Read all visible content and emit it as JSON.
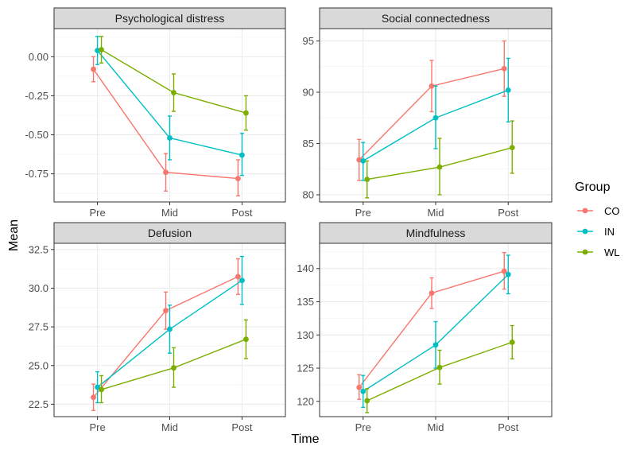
{
  "chart_data": {
    "type": "line",
    "title": "",
    "xlabel": "Time",
    "ylabel": "Mean",
    "categories": [
      "Pre",
      "Mid",
      "Post"
    ],
    "legend": {
      "title": "Group",
      "position": "right",
      "entries": [
        {
          "name": "CO",
          "color": "#F8766D"
        },
        {
          "name": "IN",
          "color": "#00BFC4"
        },
        {
          "name": "WL",
          "color": "#7CAE00"
        }
      ]
    },
    "panels": [
      {
        "title": "Psychological distress",
        "ylim": [
          -0.93,
          0.18
        ],
        "yticks": [
          0.0,
          -0.25,
          -0.5,
          -0.75
        ],
        "ytick_labels": [
          "0.00",
          "-0.25",
          "-0.50",
          "-0.75"
        ],
        "series": [
          {
            "name": "CO",
            "values": [
              -0.08,
              -0.74,
              -0.78
            ],
            "lower": [
              -0.16,
              -0.86,
              -0.89
            ],
            "upper": [
              0.0,
              -0.62,
              -0.66
            ]
          },
          {
            "name": "IN",
            "values": [
              0.04,
              -0.52,
              -0.63
            ],
            "lower": [
              -0.05,
              -0.66,
              -0.76
            ],
            "upper": [
              0.13,
              -0.38,
              -0.49
            ]
          },
          {
            "name": "WL",
            "values": [
              0.045,
              -0.23,
              -0.36
            ],
            "lower": [
              -0.04,
              -0.35,
              -0.47
            ],
            "upper": [
              0.13,
              -0.11,
              -0.25
            ]
          }
        ]
      },
      {
        "title": "Social connectedness",
        "ylim": [
          79.3,
          96.2
        ],
        "yticks": [
          80,
          85,
          90,
          95
        ],
        "ytick_labels": [
          "80",
          "85",
          "90",
          "95"
        ],
        "series": [
          {
            "name": "CO",
            "values": [
              83.4,
              90.6,
              92.3
            ],
            "lower": [
              81.4,
              88.1,
              89.6
            ],
            "upper": [
              85.4,
              93.1,
              95.0
            ]
          },
          {
            "name": "IN",
            "values": [
              83.3,
              87.5,
              90.2
            ],
            "lower": [
              81.4,
              84.5,
              87.1
            ],
            "upper": [
              85.1,
              90.6,
              93.3
            ]
          },
          {
            "name": "WL",
            "values": [
              81.5,
              82.7,
              84.6
            ],
            "lower": [
              79.7,
              80.0,
              82.1
            ],
            "upper": [
              83.3,
              85.5,
              87.2
            ]
          }
        ]
      },
      {
        "title": "Defusion",
        "ylim": [
          21.7,
          32.9
        ],
        "yticks": [
          22.5,
          25.0,
          27.5,
          30.0,
          32.5
        ],
        "ytick_labels": [
          "22.5",
          "25.0",
          "27.5",
          "30.0",
          "32.5"
        ],
        "series": [
          {
            "name": "CO",
            "values": [
              22.95,
              28.55,
              30.75
            ],
            "lower": [
              22.1,
              27.35,
              29.6
            ],
            "upper": [
              23.8,
              29.75,
              31.9
            ]
          },
          {
            "name": "IN",
            "values": [
              23.6,
              27.35,
              30.5
            ],
            "lower": [
              22.6,
              25.8,
              28.95
            ],
            "upper": [
              24.6,
              28.9,
              32.05
            ]
          },
          {
            "name": "WL",
            "values": [
              23.45,
              24.85,
              26.7
            ],
            "lower": [
              22.6,
              23.6,
              25.45
            ],
            "upper": [
              24.35,
              26.15,
              27.95
            ]
          }
        ]
      },
      {
        "title": "Mindfulness",
        "ylim": [
          117.7,
          143.8
        ],
        "yticks": [
          120,
          125,
          130,
          135,
          140
        ],
        "ytick_labels": [
          "120",
          "125",
          "130",
          "135",
          "140"
        ],
        "series": [
          {
            "name": "CO",
            "values": [
              122.1,
              136.3,
              139.6
            ],
            "lower": [
              120.3,
              134.0,
              136.9
            ],
            "upper": [
              124.0,
              138.6,
              142.4
            ]
          },
          {
            "name": "IN",
            "values": [
              121.5,
              128.5,
              139.1
            ],
            "lower": [
              119.1,
              125.0,
              136.2
            ],
            "upper": [
              123.9,
              132.0,
              142.0
            ]
          },
          {
            "name": "WL",
            "values": [
              120.1,
              125.1,
              128.9
            ],
            "lower": [
              118.3,
              122.6,
              126.4
            ],
            "upper": [
              121.9,
              127.7,
              131.4
            ]
          }
        ]
      }
    ]
  }
}
